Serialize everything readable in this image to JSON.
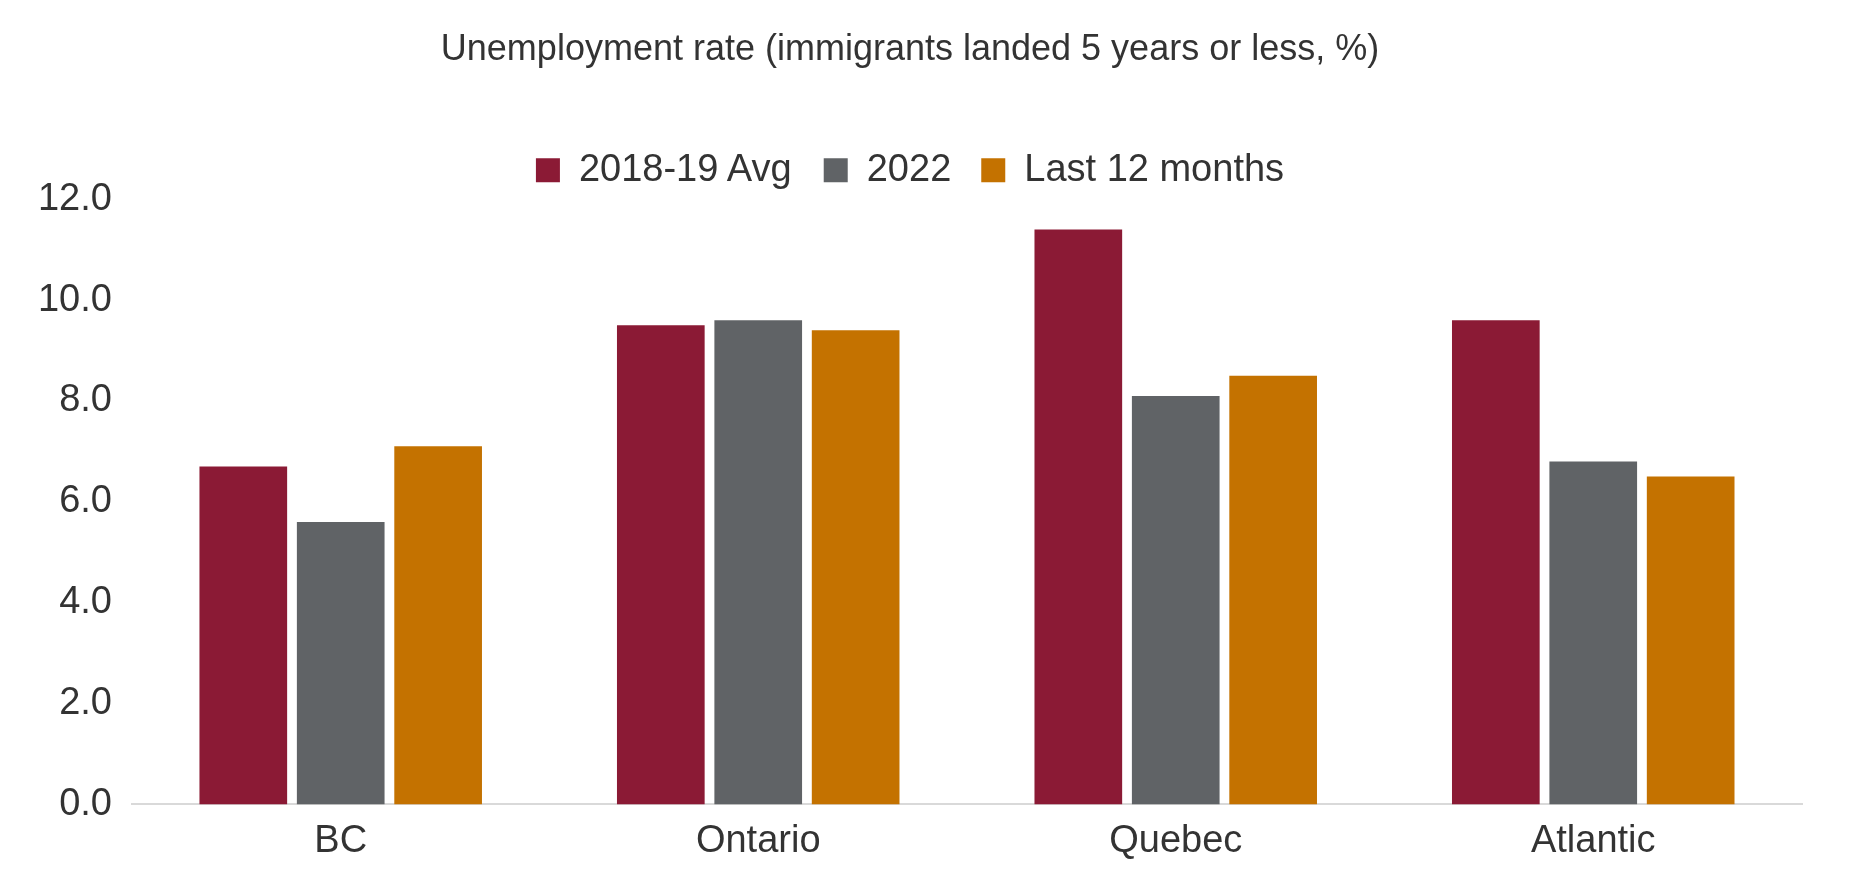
{
  "chart_data": {
    "type": "bar",
    "title": "Unemployment rate (immigrants landed 5 years or less, %)",
    "categories": [
      "BC",
      "Ontario",
      "Quebec",
      "Atlantic"
    ],
    "series": [
      {
        "name": "2018-19 Avg",
        "color": "#8b1a35",
        "values": [
          6.7,
          9.5,
          11.4,
          9.6
        ]
      },
      {
        "name": "2022",
        "color": "#606366",
        "values": [
          5.6,
          9.6,
          8.1,
          6.8
        ]
      },
      {
        "name": "Last 12 months",
        "color": "#c47200",
        "values": [
          7.1,
          9.4,
          8.5,
          6.5
        ]
      }
    ],
    "ylim": [
      0,
      12
    ],
    "yticks": [
      {
        "value": 0,
        "label": "0.0"
      },
      {
        "value": 2,
        "label": "2.0"
      },
      {
        "value": 4,
        "label": "4.0"
      },
      {
        "value": 6,
        "label": "6.0"
      },
      {
        "value": 8,
        "label": "8.0"
      },
      {
        "value": 10,
        "label": "10.0"
      },
      {
        "value": 12,
        "label": "12.0"
      }
    ],
    "grid": false,
    "legend": "top"
  }
}
